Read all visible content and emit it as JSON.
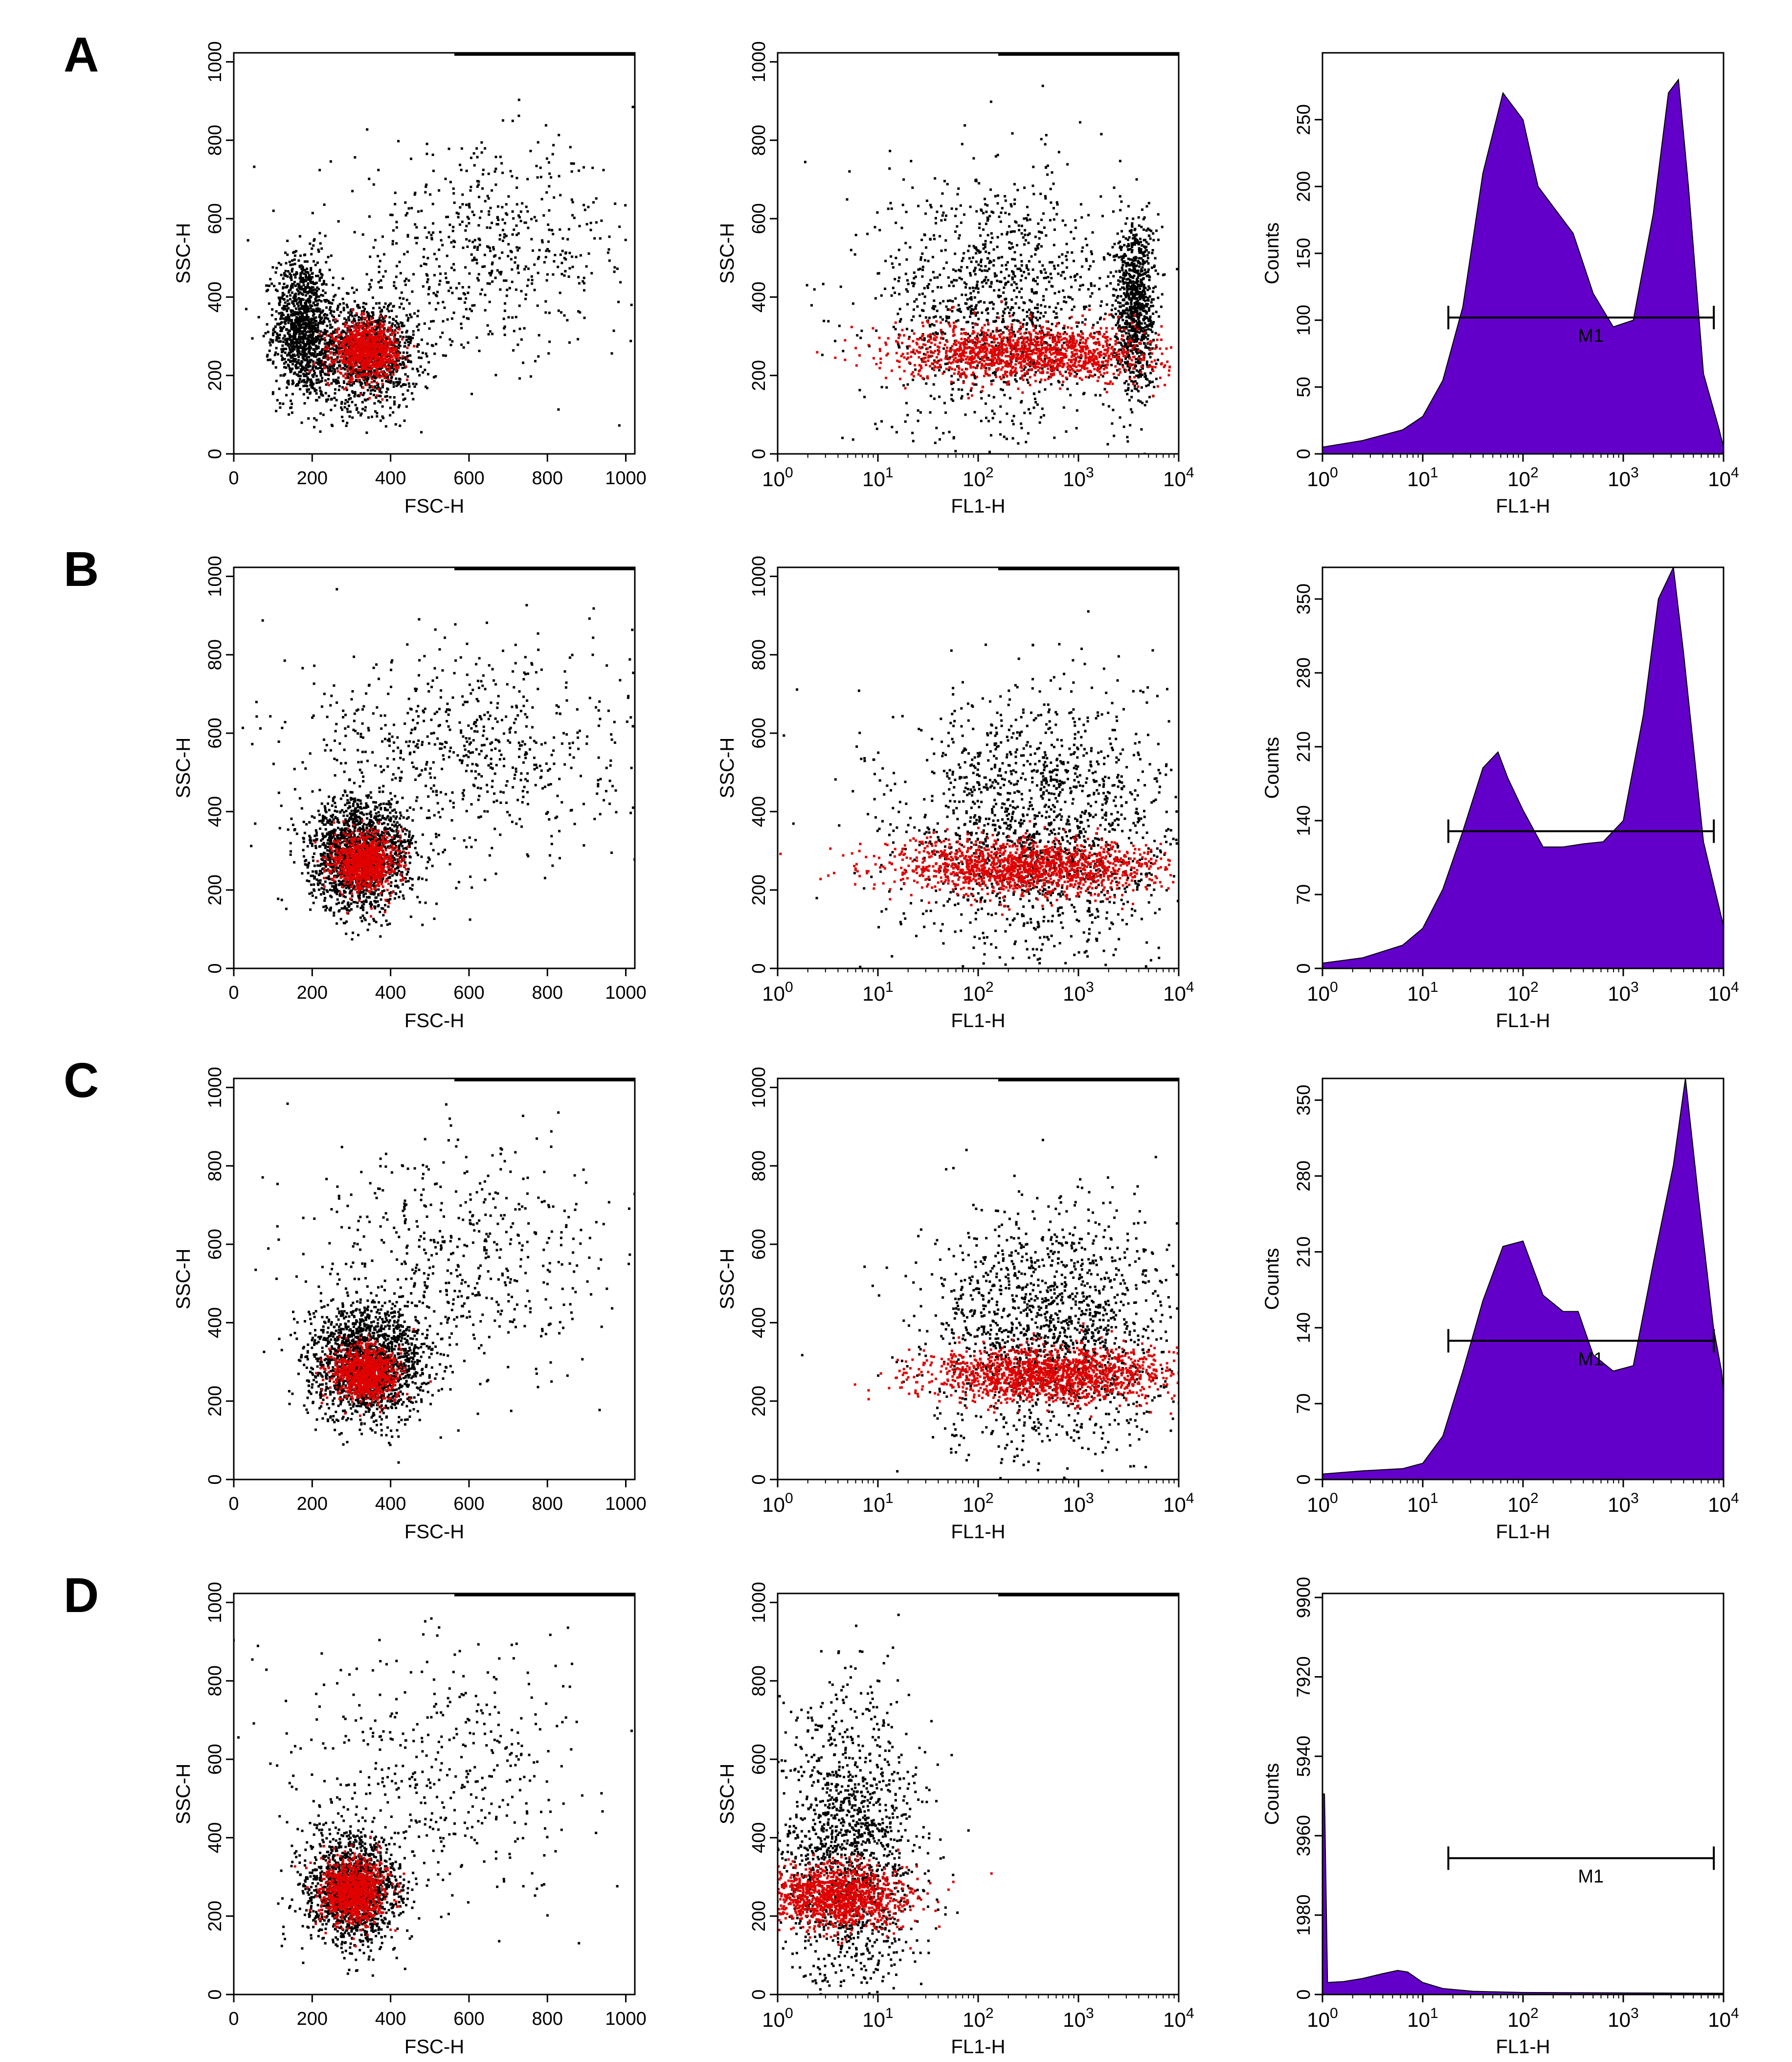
{
  "figure": {
    "description_panels": [
      "A",
      "B",
      "C",
      "D"
    ]
  },
  "chart_data": [
    {
      "row": "A",
      "panel_label": "A",
      "plots": [
        {
          "type": "scatter",
          "title": "",
          "xlabel": "FSC-H",
          "ylabel": "SSC-H",
          "xscale": "linear",
          "xlim": [
            0,
            1023
          ],
          "ylim": [
            0,
            1023
          ],
          "xticks": [
            "0",
            "200",
            "400",
            "600",
            "800",
            "1000"
          ],
          "yticks": [
            "0",
            "200",
            "400",
            "600",
            "800",
            "1000"
          ],
          "clusters": [
            {
              "name": "ungated",
              "color": "#000000",
              "cx": 170,
              "cy": 330,
              "sx": 35,
              "sy": 90,
              "n": 1100
            },
            {
              "name": "ungated",
              "color": "#000000",
              "cx": 330,
              "cy": 260,
              "sx": 70,
              "sy": 70,
              "n": 1300
            },
            {
              "name": "ungated",
              "color": "#000000",
              "cx": 650,
              "cy": 520,
              "sx": 200,
              "sy": 130,
              "n": 600
            },
            {
              "name": "gated",
              "color": "#e00000",
              "cx": 335,
              "cy": 265,
              "sx": 40,
              "sy": 35,
              "n": 900
            }
          ]
        },
        {
          "type": "scatter",
          "title": "",
          "xlabel": "FL1-H",
          "ylabel": "SSC-H",
          "xscale": "log",
          "xlim": [
            1,
            10000
          ],
          "ylim": [
            0,
            1023
          ],
          "xtick_exponents": [
            "0",
            "1",
            "2",
            "3",
            "4"
          ],
          "yticks": [
            "0",
            "200",
            "400",
            "600",
            "800",
            "1000"
          ],
          "clusters": [
            {
              "name": "ungated",
              "color": "#000000",
              "cx": 2.2,
              "cy": 380,
              "sx": 0.6,
              "sy": 170,
              "n": 1200
            },
            {
              "name": "ungated",
              "color": "#000000",
              "cx": 3.55,
              "cy": 380,
              "sx": 0.1,
              "sy": 110,
              "n": 900
            },
            {
              "name": "gated",
              "color": "#e00000",
              "cx": 2.5,
              "cy": 260,
              "sx": 0.65,
              "sy": 35,
              "n": 1400
            }
          ]
        },
        {
          "type": "area",
          "title": "",
          "xlabel": "FL1-H",
          "ylabel": "Counts",
          "xscale": "log",
          "xlim": [
            1,
            10000
          ],
          "ylim": [
            0,
            300
          ],
          "yticks": [
            "0",
            "50",
            "100",
            "150",
            "200",
            "250"
          ],
          "ytick_values": [
            0,
            50,
            100,
            150,
            200,
            250
          ],
          "xtick_exponents": [
            "0",
            "1",
            "2",
            "3",
            "4"
          ],
          "fill_color": "#6200c9",
          "x_log10": [
            0,
            0.4,
            0.8,
            1.0,
            1.2,
            1.4,
            1.6,
            1.8,
            2.0,
            2.15,
            2.3,
            2.5,
            2.7,
            2.9,
            3.1,
            3.3,
            3.45,
            3.55,
            3.65,
            3.8,
            3.95,
            4.0
          ],
          "counts": [
            5,
            10,
            18,
            28,
            55,
            110,
            210,
            270,
            250,
            200,
            185,
            165,
            120,
            95,
            100,
            180,
            270,
            280,
            200,
            60,
            20,
            5
          ],
          "marker": {
            "label": "M1",
            "x_start": 18,
            "x_end": 8000,
            "y": 102
          }
        }
      ]
    },
    {
      "row": "B",
      "panel_label": "B",
      "plots": [
        {
          "type": "scatter",
          "title": "",
          "xlabel": "FSC-H",
          "ylabel": "SSC-H",
          "xscale": "linear",
          "xlim": [
            0,
            1023
          ],
          "ylim": [
            0,
            1023
          ],
          "xticks": [
            "0",
            "200",
            "400",
            "600",
            "800",
            "1000"
          ],
          "yticks": [
            "0",
            "200",
            "400",
            "600",
            "800",
            "1000"
          ],
          "clusters": [
            {
              "name": "ungated",
              "color": "#000000",
              "cx": 320,
              "cy": 290,
              "sx": 65,
              "sy": 70,
              "n": 1700
            },
            {
              "name": "ungated",
              "color": "#000000",
              "cx": 600,
              "cy": 560,
              "sx": 220,
              "sy": 140,
              "n": 700
            },
            {
              "name": "gated",
              "color": "#e00000",
              "cx": 330,
              "cy": 275,
              "sx": 40,
              "sy": 35,
              "n": 900
            }
          ]
        },
        {
          "type": "scatter",
          "title": "",
          "xlabel": "FL1-H",
          "ylabel": "SSC-H",
          "xscale": "log",
          "xlim": [
            1,
            10000
          ],
          "ylim": [
            0,
            1023
          ],
          "xtick_exponents": [
            "0",
            "1",
            "2",
            "3",
            "4"
          ],
          "yticks": [
            "0",
            "200",
            "400",
            "600",
            "800",
            "1000"
          ],
          "clusters": [
            {
              "name": "ungated",
              "color": "#000000",
              "cx": 2.6,
              "cy": 360,
              "sx": 0.7,
              "sy": 170,
              "n": 1600
            },
            {
              "name": "gated",
              "color": "#e00000",
              "cx": 2.5,
              "cy": 260,
              "sx": 0.7,
              "sy": 35,
              "n": 1500
            }
          ]
        },
        {
          "type": "area",
          "title": "",
          "xlabel": "FL1-H",
          "ylabel": "Counts",
          "xscale": "log",
          "xlim": [
            1,
            10000
          ],
          "ylim": [
            0,
            380
          ],
          "yticks": [
            "0",
            "70",
            "140",
            "210",
            "280",
            "350"
          ],
          "ytick_values": [
            0,
            70,
            140,
            210,
            280,
            350
          ],
          "xtick_exponents": [
            "0",
            "1",
            "2",
            "3",
            "4"
          ],
          "fill_color": "#6200c9",
          "x_log10": [
            0,
            0.4,
            0.8,
            1.0,
            1.2,
            1.4,
            1.6,
            1.75,
            1.85,
            2.0,
            2.2,
            2.4,
            2.6,
            2.8,
            3.0,
            3.2,
            3.35,
            3.5,
            3.6,
            3.8,
            3.95,
            4.0
          ],
          "counts": [
            5,
            10,
            22,
            38,
            75,
            130,
            190,
            205,
            180,
            150,
            115,
            115,
            118,
            120,
            140,
            240,
            350,
            380,
            300,
            120,
            60,
            40
          ],
          "marker": {
            "label": "",
            "x_start": 18,
            "x_end": 8000,
            "y": 130
          }
        }
      ]
    },
    {
      "row": "C",
      "panel_label": "C",
      "plots": [
        {
          "type": "scatter",
          "title": "",
          "xlabel": "FSC-H",
          "ylabel": "SSC-H",
          "xscale": "linear",
          "xlim": [
            0,
            1023
          ],
          "ylim": [
            0,
            1023
          ],
          "xticks": [
            "0",
            "200",
            "400",
            "600",
            "800",
            "1000"
          ],
          "yticks": [
            "0",
            "200",
            "400",
            "600",
            "800",
            "1000"
          ],
          "clusters": [
            {
              "name": "ungated",
              "color": "#000000",
              "cx": 340,
              "cy": 300,
              "sx": 75,
              "sy": 70,
              "n": 1800
            },
            {
              "name": "ungated",
              "color": "#000000",
              "cx": 560,
              "cy": 560,
              "sx": 200,
              "sy": 150,
              "n": 550
            },
            {
              "name": "gated",
              "color": "#e00000",
              "cx": 330,
              "cy": 275,
              "sx": 40,
              "sy": 35,
              "n": 900
            }
          ]
        },
        {
          "type": "scatter",
          "title": "",
          "xlabel": "FL1-H",
          "ylabel": "SSC-H",
          "xscale": "log",
          "xlim": [
            1,
            10000
          ],
          "ylim": [
            0,
            1023
          ],
          "xtick_exponents": [
            "0",
            "1",
            "2",
            "3",
            "4"
          ],
          "yticks": [
            "0",
            "200",
            "400",
            "600",
            "800",
            "1000"
          ],
          "clusters": [
            {
              "name": "ungated",
              "color": "#000000",
              "cx": 2.7,
              "cy": 370,
              "sx": 0.6,
              "sy": 160,
              "n": 1500
            },
            {
              "name": "gated",
              "color": "#e00000",
              "cx": 2.7,
              "cy": 270,
              "sx": 0.6,
              "sy": 35,
              "n": 1500
            }
          ]
        },
        {
          "type": "area",
          "title": "",
          "xlabel": "FL1-H",
          "ylabel": "Counts",
          "xscale": "log",
          "xlim": [
            1,
            10000
          ],
          "ylim": [
            0,
            370
          ],
          "yticks": [
            "0",
            "70",
            "140",
            "210",
            "280",
            "350"
          ],
          "ytick_values": [
            0,
            70,
            140,
            210,
            280,
            350
          ],
          "xtick_exponents": [
            "0",
            "1",
            "2",
            "3",
            "4"
          ],
          "fill_color": "#6200c9",
          "x_log10": [
            0,
            0.4,
            0.8,
            1.0,
            1.2,
            1.4,
            1.6,
            1.8,
            2.0,
            2.2,
            2.4,
            2.55,
            2.7,
            2.9,
            3.1,
            3.3,
            3.5,
            3.62,
            3.75,
            3.9,
            3.98,
            4.0
          ],
          "counts": [
            5,
            8,
            10,
            15,
            40,
            100,
            165,
            215,
            220,
            170,
            155,
            155,
            115,
            100,
            105,
            200,
            290,
            370,
            260,
            140,
            100,
            80
          ],
          "marker": {
            "label": "M1",
            "x_start": 18,
            "x_end": 8000,
            "y": 128
          }
        }
      ]
    },
    {
      "row": "D",
      "panel_label": "D",
      "plots": [
        {
          "type": "scatter",
          "title": "",
          "xlabel": "FSC-H",
          "ylabel": "SSC-H",
          "xscale": "linear",
          "xlim": [
            0,
            1023
          ],
          "ylim": [
            0,
            1023
          ],
          "xticks": [
            "0",
            "200",
            "400",
            "600",
            "800",
            "1000"
          ],
          "yticks": [
            "0",
            "200",
            "400",
            "600",
            "800",
            "1000"
          ],
          "clusters": [
            {
              "name": "ungated",
              "color": "#000000",
              "cx": 300,
              "cy": 270,
              "sx": 60,
              "sy": 70,
              "n": 1500
            },
            {
              "name": "ungated",
              "color": "#000000",
              "cx": 520,
              "cy": 580,
              "sx": 200,
              "sy": 160,
              "n": 450
            },
            {
              "name": "gated",
              "color": "#e00000",
              "cx": 300,
              "cy": 265,
              "sx": 40,
              "sy": 40,
              "n": 1000
            }
          ]
        },
        {
          "type": "scatter",
          "title": "",
          "xlabel": "FL1-H",
          "ylabel": "SSC-H",
          "xscale": "log",
          "xlim": [
            1,
            10000
          ],
          "ylim": [
            0,
            1023
          ],
          "xtick_exponents": [
            "0",
            "1",
            "2",
            "3",
            "4"
          ],
          "yticks": [
            "0",
            "200",
            "400",
            "600",
            "800",
            "1000"
          ],
          "clusters": [
            {
              "name": "ungated",
              "color": "#000000",
              "cx": 0.7,
              "cy": 360,
              "sx": 0.35,
              "sy": 190,
              "n": 1500
            },
            {
              "name": "gated",
              "color": "#e00000",
              "cx": 0.6,
              "cy": 250,
              "sx": 0.35,
              "sy": 40,
              "n": 1200
            }
          ]
        },
        {
          "type": "area",
          "title": "",
          "xlabel": "FL1-H",
          "ylabel": "Counts",
          "xscale": "log",
          "xlim": [
            1,
            10000
          ],
          "ylim": [
            0,
            10000
          ],
          "yticks": [
            "0",
            "1980",
            "3960",
            "5940",
            "7920",
            "9900"
          ],
          "ytick_values": [
            0,
            1980,
            3960,
            5940,
            7920,
            9900
          ],
          "xtick_exponents": [
            "0",
            "1",
            "2",
            "3",
            "4"
          ],
          "fill_color": "#6200c9",
          "x_log10": [
            0,
            0.02,
            0.05,
            0.2,
            0.4,
            0.6,
            0.75,
            0.85,
            1.0,
            1.2,
            1.5,
            2.0,
            3.0,
            4.0
          ],
          "counts": [
            5000,
            5000,
            300,
            320,
            400,
            520,
            600,
            560,
            300,
            150,
            80,
            50,
            40,
            30
          ],
          "marker": {
            "label": "M1",
            "x_start": 18,
            "x_end": 8000,
            "y": 3400
          }
        }
      ]
    }
  ]
}
